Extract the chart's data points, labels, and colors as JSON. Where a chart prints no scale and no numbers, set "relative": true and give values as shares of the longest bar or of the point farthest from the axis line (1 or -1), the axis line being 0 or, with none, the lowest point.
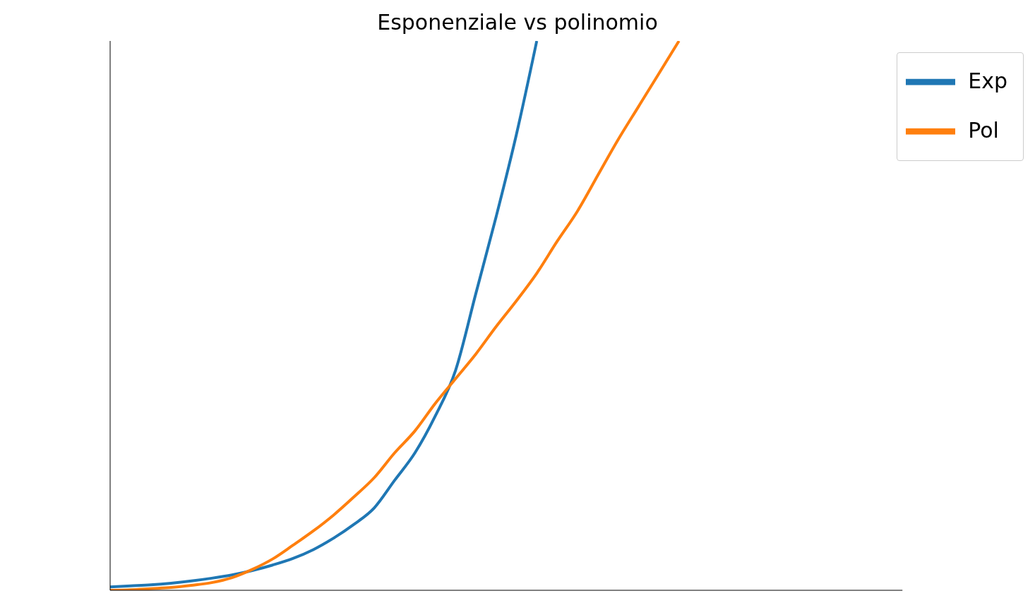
{
  "chart_data": {
    "type": "line",
    "title": "Esponenziale vs polinomio",
    "relative": true,
    "grid": false,
    "legend": "top right",
    "marker": "none",
    "line_style": "solid",
    "categories": [
      null,
      null,
      null,
      null,
      null,
      null,
      null,
      null,
      null,
      null,
      null,
      null,
      null,
      null,
      null,
      null,
      null,
      null,
      null,
      null,
      null,
      null,
      null,
      null,
      null,
      null,
      null,
      null,
      null,
      null,
      null,
      null,
      null,
      null,
      null,
      null,
      null,
      null,
      null,
      null
    ],
    "series": [
      {
        "name": "Exp",
        "color": "#1f77b4",
        "values": [
          0.006,
          0.008,
          0.01,
          0.013,
          0.017,
          0.022,
          0.028,
          0.036,
          0.046,
          0.058,
          0.074,
          0.095,
          0.12,
          0.15,
          0.2,
          0.25,
          0.317,
          0.4,
          0.54,
          0.68,
          0.83,
          1,
          null,
          null,
          null,
          null,
          null,
          null,
          null,
          null,
          null,
          null,
          null,
          null,
          null,
          null,
          null,
          null,
          null,
          null
        ]
      },
      {
        "name": "Pol",
        "color": "#ff7f0e",
        "values": [
          0,
          0.001,
          0.003,
          0.005,
          0.009,
          0.014,
          0.023,
          0.038,
          0.057,
          0.082,
          0.108,
          0.137,
          0.17,
          0.205,
          0.25,
          0.29,
          0.34,
          0.385,
          0.43,
          0.48,
          0.527,
          0.577,
          0.635,
          0.69,
          0.755,
          0.82,
          0.88,
          0.94,
          1,
          null,
          null,
          null,
          null,
          null,
          null,
          null,
          null,
          null,
          null,
          null
        ]
      }
    ]
  }
}
